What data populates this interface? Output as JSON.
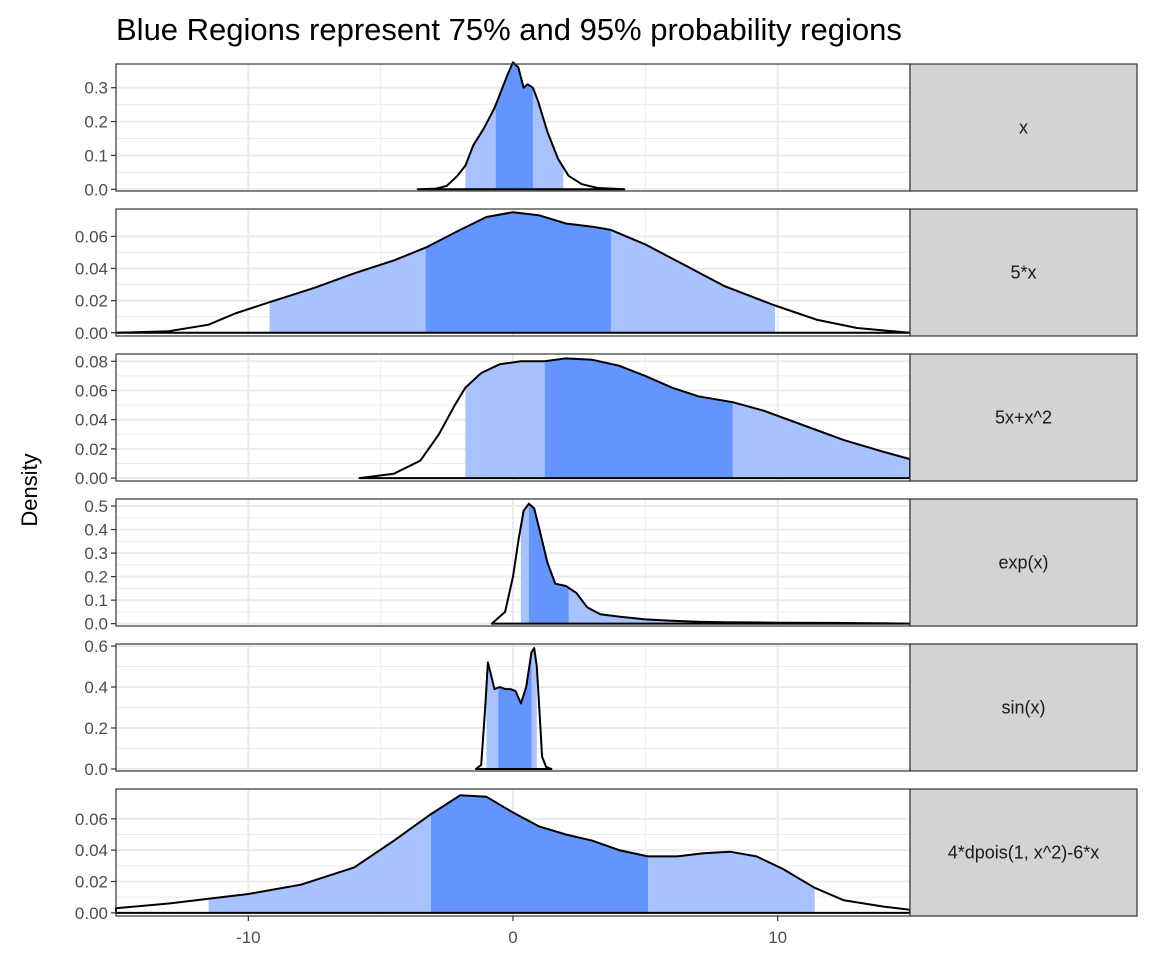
{
  "title": "Blue Regions represent 75% and 95% probability regions",
  "chart_data": {
    "type": "area",
    "title": "Blue Regions represent 75% and 95% probability regions",
    "xlabel": "",
    "ylabel": "Density",
    "xlim": [
      -15,
      15
    ],
    "x_ticks": [
      -10,
      0,
      10
    ],
    "x_tick_labels": [
      "-10",
      "0",
      "10"
    ],
    "grid": true,
    "colors": {
      "inner_region": "#6495ff",
      "outer_region": "#a8c2ff",
      "line": "#000000",
      "strip_fill": "#d3d3d3",
      "grid": "#ebebeb"
    },
    "facets": [
      {
        "label": "x",
        "ylim": [
          -0.005,
          0.37
        ],
        "y_ticks": [
          0,
          0.1,
          0.2,
          0.3
        ],
        "y_tick_labels": [
          "0.0",
          "0.1",
          "0.2",
          "0.3"
        ],
        "region95": [
          -1.8,
          1.9
        ],
        "region75": [
          -0.65,
          0.75
        ],
        "curve": [
          [
            -3.6,
            0.0
          ],
          [
            -2.9,
            0.002
          ],
          [
            -2.5,
            0.01
          ],
          [
            -2.1,
            0.04
          ],
          [
            -1.8,
            0.07
          ],
          [
            -1.5,
            0.13
          ],
          [
            -1.1,
            0.18
          ],
          [
            -0.7,
            0.24
          ],
          [
            -0.45,
            0.29
          ],
          [
            -0.2,
            0.34
          ],
          [
            0.0,
            0.375
          ],
          [
            0.2,
            0.36
          ],
          [
            0.4,
            0.3
          ],
          [
            0.55,
            0.31
          ],
          [
            0.75,
            0.3
          ],
          [
            0.95,
            0.26
          ],
          [
            1.3,
            0.17
          ],
          [
            1.7,
            0.09
          ],
          [
            2.1,
            0.04
          ],
          [
            2.6,
            0.015
          ],
          [
            3.2,
            0.004
          ],
          [
            4.2,
            0.0
          ]
        ]
      },
      {
        "label": "5*x",
        "ylim": [
          -0.002,
          0.077
        ],
        "y_ticks": [
          0,
          0.02,
          0.04,
          0.06
        ],
        "y_tick_labels": [
          "0.00",
          "0.02",
          "0.04",
          "0.06"
        ],
        "region95": [
          -9.2,
          9.9
        ],
        "region75": [
          -3.3,
          3.7
        ],
        "curve": [
          [
            -15,
            0.0
          ],
          [
            -13,
            0.001
          ],
          [
            -11.5,
            0.005
          ],
          [
            -10.5,
            0.012
          ],
          [
            -9.2,
            0.019
          ],
          [
            -7.5,
            0.028
          ],
          [
            -6,
            0.037
          ],
          [
            -4.5,
            0.045
          ],
          [
            -3.3,
            0.053
          ],
          [
            -2,
            0.064
          ],
          [
            -1,
            0.072
          ],
          [
            0,
            0.075
          ],
          [
            1,
            0.073
          ],
          [
            2,
            0.068
          ],
          [
            3,
            0.066
          ],
          [
            3.7,
            0.064
          ],
          [
            5,
            0.055
          ],
          [
            6.5,
            0.042
          ],
          [
            8,
            0.029
          ],
          [
            9.9,
            0.017
          ],
          [
            11.5,
            0.008
          ],
          [
            13,
            0.003
          ],
          [
            15,
            0.0
          ]
        ]
      },
      {
        "label": "5x+x^2",
        "ylim": [
          -0.002,
          0.085
        ],
        "y_ticks": [
          0,
          0.02,
          0.04,
          0.06,
          0.08
        ],
        "y_tick_labels": [
          "0.00",
          "0.02",
          "0.04",
          "0.06",
          "0.08"
        ],
        "region95": [
          -1.8,
          15
        ],
        "region75": [
          1.2,
          8.3
        ],
        "curve": [
          [
            -5.8,
            0.0
          ],
          [
            -4.5,
            0.003
          ],
          [
            -3.5,
            0.012
          ],
          [
            -2.8,
            0.03
          ],
          [
            -2.2,
            0.05
          ],
          [
            -1.8,
            0.062
          ],
          [
            -1.2,
            0.072
          ],
          [
            -0.5,
            0.078
          ],
          [
            0.3,
            0.08
          ],
          [
            1.2,
            0.08
          ],
          [
            2,
            0.082
          ],
          [
            3,
            0.081
          ],
          [
            4,
            0.077
          ],
          [
            5,
            0.07
          ],
          [
            6,
            0.062
          ],
          [
            7,
            0.056
          ],
          [
            8.3,
            0.052
          ],
          [
            9.5,
            0.046
          ],
          [
            11,
            0.036
          ],
          [
            12.5,
            0.026
          ],
          [
            14,
            0.018
          ],
          [
            15,
            0.013
          ]
        ]
      },
      {
        "label": "exp(x)",
        "ylim": [
          -0.01,
          0.53
        ],
        "y_ticks": [
          0,
          0.1,
          0.2,
          0.3,
          0.4,
          0.5
        ],
        "y_tick_labels": [
          "0.0",
          "0.1",
          "0.2",
          "0.3",
          "0.4",
          "0.5"
        ],
        "region95": [
          0.3,
          7.3
        ],
        "region75": [
          0.6,
          2.1
        ],
        "curve": [
          [
            -0.8,
            0.0
          ],
          [
            -0.3,
            0.05
          ],
          [
            0.0,
            0.2
          ],
          [
            0.2,
            0.35
          ],
          [
            0.4,
            0.48
          ],
          [
            0.6,
            0.51
          ],
          [
            0.8,
            0.49
          ],
          [
            1.0,
            0.4
          ],
          [
            1.3,
            0.26
          ],
          [
            1.6,
            0.17
          ],
          [
            2.0,
            0.16
          ],
          [
            2.4,
            0.13
          ],
          [
            2.8,
            0.07
          ],
          [
            3.3,
            0.04
          ],
          [
            4.0,
            0.03
          ],
          [
            5,
            0.018
          ],
          [
            6,
            0.012
          ],
          [
            7,
            0.008
          ],
          [
            8,
            0.006
          ],
          [
            10,
            0.004
          ],
          [
            12,
            0.003
          ],
          [
            15,
            0.0
          ]
        ]
      },
      {
        "label": "sin(x)",
        "ylim": [
          -0.01,
          0.61
        ],
        "y_ticks": [
          0,
          0.2,
          0.4,
          0.6
        ],
        "y_tick_labels": [
          "0.0",
          "0.2",
          "0.4",
          "0.6"
        ],
        "region95": [
          -1.0,
          0.9
        ],
        "region75": [
          -0.55,
          0.7
        ],
        "curve": [
          [
            -1.4,
            0.0
          ],
          [
            -1.2,
            0.02
          ],
          [
            -1.05,
            0.3
          ],
          [
            -0.95,
            0.52
          ],
          [
            -0.85,
            0.47
          ],
          [
            -0.7,
            0.39
          ],
          [
            -0.5,
            0.4
          ],
          [
            -0.3,
            0.39
          ],
          [
            -0.1,
            0.39
          ],
          [
            0.1,
            0.38
          ],
          [
            0.3,
            0.32
          ],
          [
            0.5,
            0.4
          ],
          [
            0.7,
            0.57
          ],
          [
            0.8,
            0.59
          ],
          [
            0.9,
            0.5
          ],
          [
            1.0,
            0.28
          ],
          [
            1.1,
            0.06
          ],
          [
            1.25,
            0.01
          ],
          [
            1.45,
            0.0
          ]
        ]
      },
      {
        "label": "4*dpois(1, x^2)-6*x",
        "ylim": [
          -0.002,
          0.079
        ],
        "y_ticks": [
          0,
          0.02,
          0.04,
          0.06
        ],
        "y_tick_labels": [
          "0.00",
          "0.02",
          "0.04",
          "0.06"
        ],
        "region95": [
          -11.5,
          11.4
        ],
        "region75": [
          -3.1,
          5.1
        ],
        "curve": [
          [
            -15,
            0.003
          ],
          [
            -13,
            0.006
          ],
          [
            -11.5,
            0.009
          ],
          [
            -10,
            0.012
          ],
          [
            -8,
            0.018
          ],
          [
            -6,
            0.029
          ],
          [
            -4.5,
            0.046
          ],
          [
            -3.1,
            0.063
          ],
          [
            -2,
            0.075
          ],
          [
            -1,
            0.074
          ],
          [
            0,
            0.064
          ],
          [
            1,
            0.055
          ],
          [
            2,
            0.05
          ],
          [
            3,
            0.046
          ],
          [
            4,
            0.04
          ],
          [
            5.1,
            0.036
          ],
          [
            6.2,
            0.036
          ],
          [
            7.2,
            0.038
          ],
          [
            8.2,
            0.039
          ],
          [
            9.2,
            0.036
          ],
          [
            10.2,
            0.028
          ],
          [
            11.4,
            0.016
          ],
          [
            12.5,
            0.008
          ],
          [
            14,
            0.004
          ],
          [
            15,
            0.002
          ]
        ]
      }
    ]
  }
}
